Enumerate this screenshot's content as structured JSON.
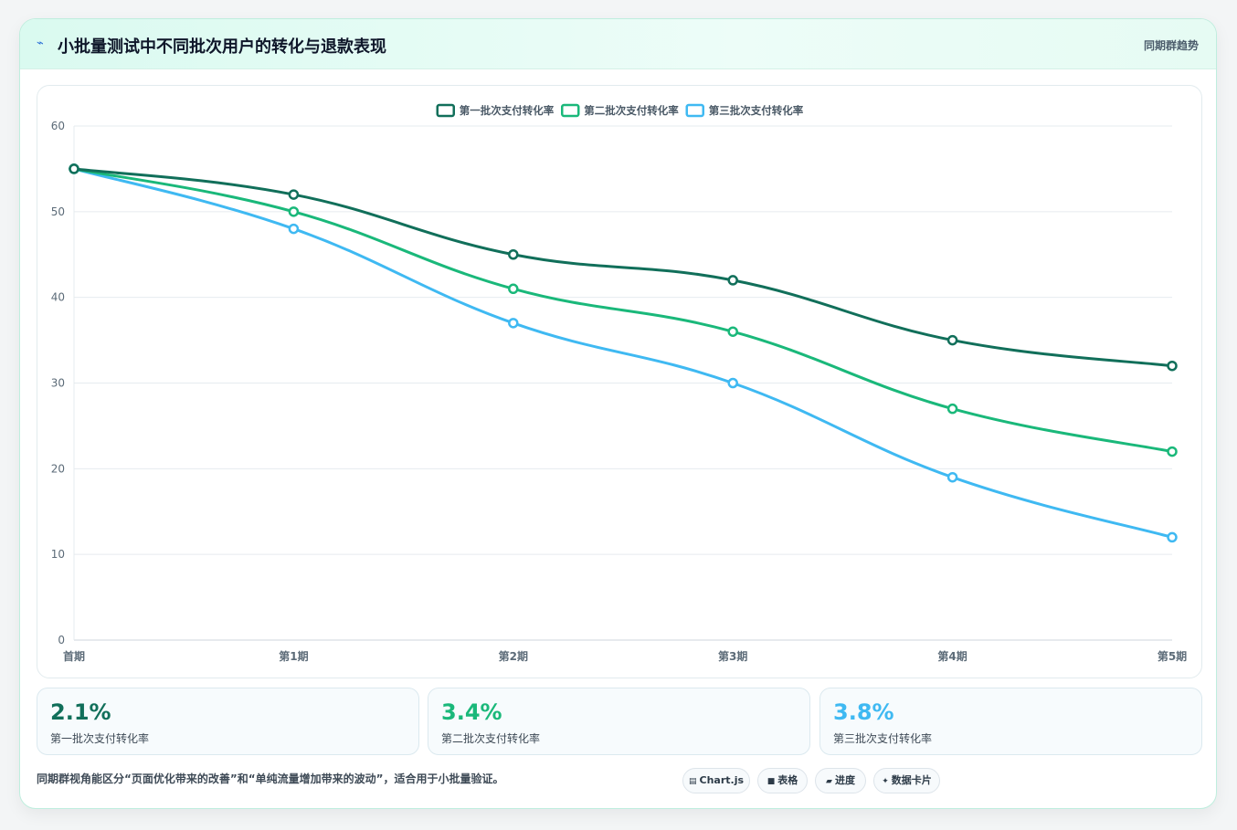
{
  "header": {
    "icon": "lightning-icon",
    "title": "小批量测试中不同批次用户的转化与退款表现",
    "link_label": "同期群趋势"
  },
  "chart_data": {
    "type": "line",
    "categories": [
      "首期",
      "第1期",
      "第2期",
      "第3期",
      "第4期",
      "第5期"
    ],
    "series": [
      {
        "name": "第一批次支付转化率",
        "values": [
          55,
          52,
          45,
          42,
          35,
          32
        ],
        "color": "#116f5a"
      },
      {
        "name": "第二批次支付转化率",
        "values": [
          55,
          50,
          41,
          36,
          27,
          22
        ],
        "color": "#1ab87a"
      },
      {
        "name": "第三批次支付转化率",
        "values": [
          55,
          48,
          37,
          30,
          19,
          12
        ],
        "color": "#3fb9f2"
      }
    ],
    "ylim": [
      0,
      60
    ],
    "yticks": [
      0,
      10,
      20,
      30,
      40,
      50,
      60
    ],
    "grid": true,
    "legend": "top-center",
    "curve": "smooth"
  },
  "stats": [
    {
      "value": "2.1%",
      "label": "第一批次支付转化率",
      "color": "#116f5a"
    },
    {
      "value": "3.4%",
      "label": "第二批次支付转化率",
      "color": "#1ab87a"
    },
    {
      "value": "3.8%",
      "label": "第三批次支付转化率",
      "color": "#3fb9f2"
    }
  ],
  "footnote": "同期群视角能区分“页面优化带来的改善”和“单纯流量增加带来的波动”，适合用于小批量验证。",
  "chips": [
    {
      "icon": "▤",
      "icon_name": "chart-icon",
      "label": "Chart.js"
    },
    {
      "icon": "■",
      "icon_name": "table-icon",
      "label": "表格"
    },
    {
      "icon": "▰",
      "icon_name": "progress-icon",
      "label": "进度"
    },
    {
      "icon": "✦",
      "icon_name": "sparkle-icon",
      "label": "数据卡片"
    }
  ]
}
